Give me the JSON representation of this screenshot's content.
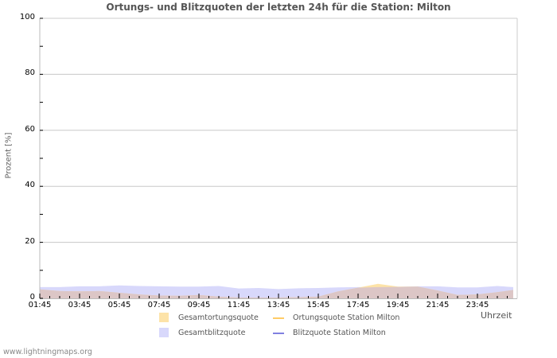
{
  "title": "Ortungs- und Blitzquoten der letzten 24h für die Station: Milton",
  "footer": "www.lightningmaps.org",
  "colors": {
    "gesamtortung_fill": "#fde3a8",
    "gesamtblitz_fill": "#d8d8fb",
    "overlap_fill": "#dcc6c6",
    "ortung_station_line": "#ffcc66",
    "blitz_station_line": "#8080e0",
    "grid": "#c8c8c8"
  },
  "legend": [
    {
      "label": "Gesamtortungsquote",
      "type": "area"
    },
    {
      "label": "Ortungsquote Station Milton",
      "type": "line"
    },
    {
      "label": "Gesamtblitzquote",
      "type": "area"
    },
    {
      "label": "Blitzquote Station Milton",
      "type": "line"
    }
  ],
  "chart_data": {
    "type": "area",
    "title": "Ortungs- und Blitzquoten der letzten 24h für die Station: Milton",
    "xlabel": "Uhrzeit",
    "ylabel": "Prozent   [%]",
    "ylim": [
      0,
      100
    ],
    "yticks": [
      0,
      20,
      40,
      60,
      80,
      100
    ],
    "xticks": [
      "01:45",
      "03:45",
      "05:45",
      "07:45",
      "09:45",
      "11:45",
      "13:45",
      "15:45",
      "17:45",
      "19:45",
      "21:45",
      "23:45"
    ],
    "grid": true,
    "legend_position": "bottom",
    "x": [
      "01:45",
      "02:45",
      "03:45",
      "04:45",
      "05:45",
      "06:45",
      "07:45",
      "08:45",
      "09:45",
      "10:45",
      "11:45",
      "12:45",
      "13:45",
      "14:45",
      "15:45",
      "16:45",
      "17:45",
      "18:45",
      "19:45",
      "20:45",
      "21:45",
      "22:45",
      "23:45",
      "00:45",
      "01:35"
    ],
    "series": [
      {
        "name": "Gesamtortungsquote",
        "values": [
          3.2,
          2.6,
          2.5,
          2.6,
          2.0,
          1.4,
          1.0,
          0.9,
          1.2,
          0.6,
          0.3,
          0.3,
          0.3,
          0.4,
          0.6,
          2.5,
          3.8,
          5.2,
          4.2,
          4.2,
          2.8,
          1.2,
          1.4,
          2.2,
          3.0
        ]
      },
      {
        "name": "Gesamtblitzquote",
        "values": [
          4.0,
          4.0,
          4.3,
          4.3,
          4.6,
          4.4,
          4.3,
          4.2,
          4.2,
          4.4,
          3.5,
          3.7,
          3.3,
          3.6,
          3.7,
          3.9,
          4.0,
          4.0,
          4.1,
          4.3,
          4.3,
          3.9,
          3.9,
          4.4,
          4.0
        ]
      },
      {
        "name": "Ortungsquote Station Milton",
        "values": []
      },
      {
        "name": "Blitzquote Station Milton",
        "values": []
      }
    ]
  }
}
